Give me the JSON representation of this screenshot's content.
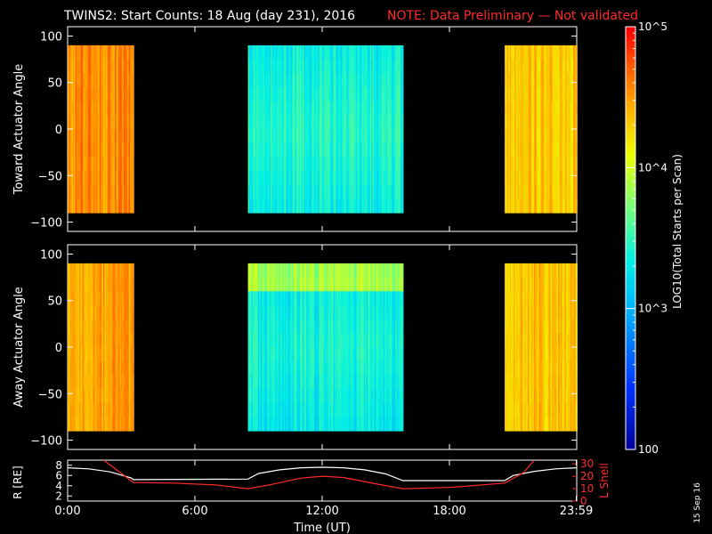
{
  "title": {
    "main": "TWINS2: Start Counts: 18 Aug (day 231), 2016",
    "note": "NOTE: Data Preliminary — Not validated"
  },
  "colors": {
    "background": "#000000",
    "axis": "#ffffff",
    "note": "#ff2a2a",
    "r_line": "#ffffff",
    "l_line": "#ff2a2a"
  },
  "chart_data": [
    {
      "type": "heatmap",
      "name": "toward",
      "ylabel": "Toward Actuator Angle",
      "ylim": [
        -110,
        110
      ],
      "yticks": [
        -100,
        -50,
        0,
        50,
        100
      ],
      "xlim": [
        0,
        24
      ],
      "angle_range": [
        -90,
        90
      ],
      "segments": [
        {
          "start": 0.0,
          "end": 3.1,
          "level": 4.55
        },
        {
          "start": 8.5,
          "end": 15.8,
          "level": 3.35
        },
        {
          "start": 20.6,
          "end": 24.0,
          "level": 4.35
        }
      ]
    },
    {
      "type": "heatmap",
      "name": "away",
      "ylabel": "Away Actuator Angle",
      "ylim": [
        -110,
        110
      ],
      "yticks": [
        -100,
        -50,
        0,
        50,
        100
      ],
      "xlim": [
        0,
        24
      ],
      "angle_range": [
        -90,
        90
      ],
      "segments": [
        {
          "start": 0.0,
          "end": 3.1,
          "level": 4.45
        },
        {
          "start": 8.5,
          "end": 15.8,
          "level": 3.3
        },
        {
          "start": 20.6,
          "end": 24.0,
          "level": 4.35
        }
      ]
    },
    {
      "type": "line",
      "name": "ephemeris",
      "ylabel_left": "R [RE]",
      "ylabel_right": "L Shell",
      "ylim_left": [
        1,
        9
      ],
      "yticks_left": [
        2,
        4,
        6,
        8
      ],
      "ylim_right": [
        0,
        33
      ],
      "yticks_right": [
        0,
        10,
        20,
        30
      ],
      "xlabel": "Time (UT)",
      "xlim": [
        0,
        24
      ],
      "xtick_labels": [
        "0:00",
        "6:00",
        "12:00",
        "18:00",
        "23:59"
      ],
      "xtick_values": [
        0,
        6,
        12,
        18,
        23.98
      ],
      "series": [
        {
          "name": "R",
          "axis": "left",
          "x": [
            0,
            1,
            2,
            3,
            3.1,
            8.5,
            9,
            10,
            11,
            12,
            13,
            14,
            15,
            15.8,
            20.6,
            21,
            22,
            23,
            24
          ],
          "y": [
            7.5,
            7.3,
            6.7,
            5.5,
            5.2,
            5.3,
            6.4,
            7.1,
            7.5,
            7.6,
            7.5,
            7.1,
            6.3,
            5.0,
            5.0,
            6.0,
            6.8,
            7.3,
            7.5
          ]
        },
        {
          "name": "L Shell",
          "axis": "right",
          "x": [
            1.7,
            3.1,
            5,
            7,
            8.5,
            9.5,
            11,
            12,
            13,
            14.5,
            15.8,
            18,
            20.6,
            21.5,
            22
          ],
          "y": [
            33,
            15,
            14.5,
            13,
            10,
            13,
            18.5,
            20,
            19,
            14,
            10,
            11,
            14.5,
            23,
            33
          ]
        }
      ]
    },
    {
      "type": "colorbar",
      "label": "LOG10(Total Starts per Scan)",
      "range_log": [
        2,
        5
      ],
      "tick_labels": [
        "100",
        "10^3",
        "10^4",
        "10^5"
      ],
      "tick_values": [
        2,
        3,
        4,
        5
      ]
    }
  ],
  "footer": {
    "date_stamp": "15 Sep 16"
  },
  "labels": {
    "r_axis": "R [RE]",
    "l_axis": "L Shell",
    "time_axis": "Time (UT)",
    "colorbar_axis": "LOG10(Total Starts per Scan)"
  }
}
